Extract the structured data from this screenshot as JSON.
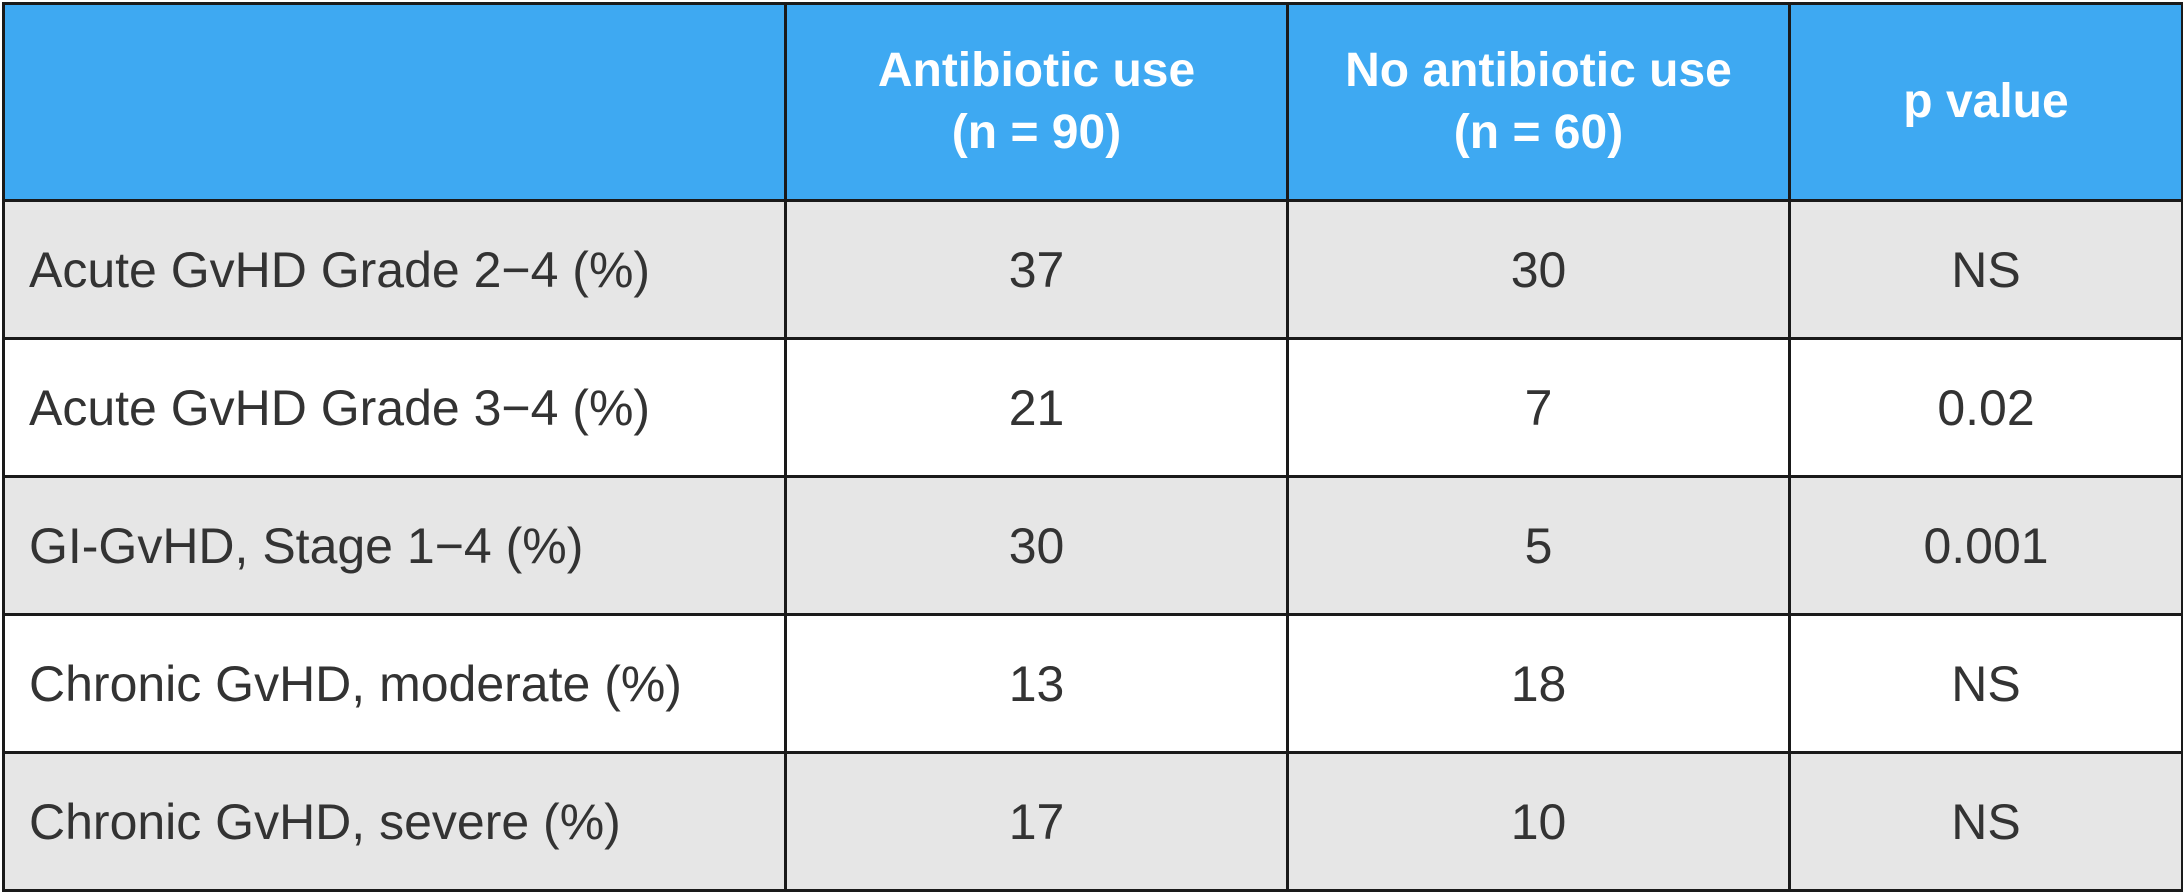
{
  "table": {
    "header": {
      "blank": "",
      "col1_line1": "Antibiotic use",
      "col1_line2": "(n = 90)",
      "col2_line1": "No antibiotic use",
      "col2_line2": "(n = 60)",
      "col3": "p value"
    },
    "colors": {
      "header_bg": "#3ea9f2",
      "header_text": "#ffffff",
      "shaded_row_bg": "#e6e6e6",
      "plain_row_bg": "#ffffff",
      "body_text": "#333333",
      "border": "#1a1a1a"
    },
    "rows": [
      {
        "label": "Acute GvHD Grade 2−4 (%)",
        "antibiotic": "37",
        "no_antibiotic": "30",
        "p": "NS"
      },
      {
        "label": "Acute GvHD Grade 3−4 (%)",
        "antibiotic": "21",
        "no_antibiotic": "7",
        "p": "0.02"
      },
      {
        "label": "GI-GvHD, Stage 1−4 (%)",
        "antibiotic": "30",
        "no_antibiotic": "5",
        "p": "0.001"
      },
      {
        "label": "Chronic GvHD, moderate (%)",
        "antibiotic": "13",
        "no_antibiotic": "18",
        "p": "NS"
      },
      {
        "label": "Chronic GvHD, severe (%)",
        "antibiotic": "17",
        "no_antibiotic": "10",
        "p": "NS"
      }
    ]
  }
}
